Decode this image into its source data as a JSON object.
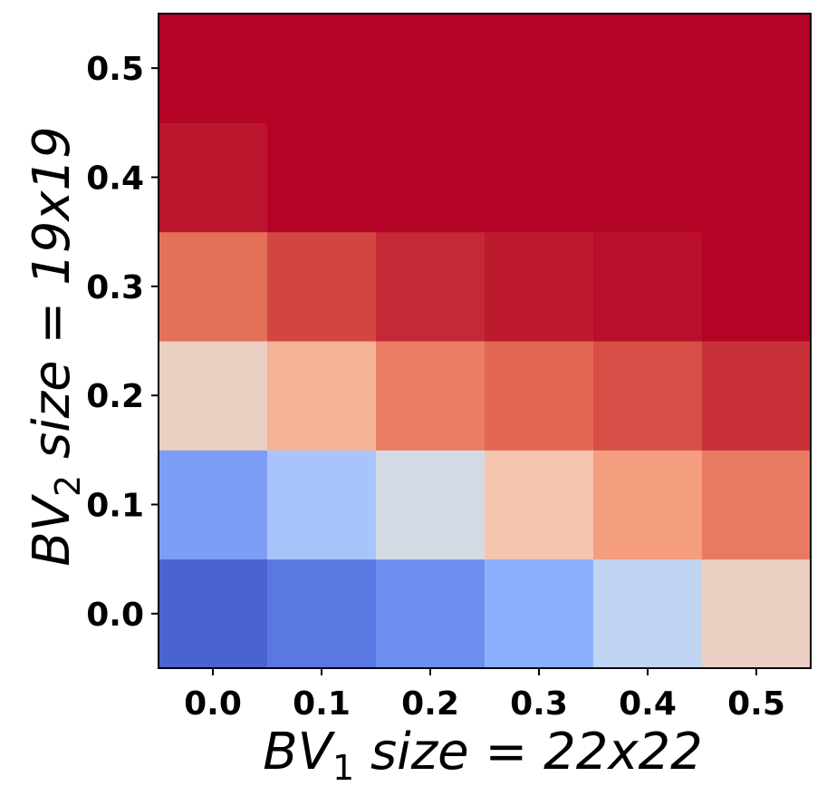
{
  "chart_data": {
    "type": "heatmap",
    "title": "",
    "xlabel": {
      "main": "BV",
      "sub": "1",
      "rest": " size = 22x22"
    },
    "ylabel": {
      "main": "BV",
      "sub": "2",
      "rest": " size = 19x19"
    },
    "x_ticks": [
      "0.0",
      "0.1",
      "0.2",
      "0.3",
      "0.4",
      "0.5"
    ],
    "y_ticks": [
      "0.0",
      "0.1",
      "0.2",
      "0.3",
      "0.4",
      "0.5"
    ],
    "x": [
      0.0,
      0.1,
      0.2,
      0.3,
      0.4,
      0.5
    ],
    "y": [
      0.0,
      0.1,
      0.2,
      0.3,
      0.4,
      0.5
    ],
    "colormap": "coolwarm",
    "vrange": [
      0,
      1
    ],
    "values": [
      [
        0.05,
        0.1,
        0.16,
        0.25,
        0.4,
        0.57
      ],
      [
        0.2,
        0.33,
        0.47,
        0.62,
        0.74,
        0.82
      ],
      [
        0.57,
        0.68,
        0.81,
        0.86,
        0.9,
        0.94
      ],
      [
        0.84,
        0.91,
        0.95,
        0.97,
        0.985,
        1.0
      ],
      [
        0.975,
        1.0,
        1.0,
        1.0,
        1.0,
        1.0
      ],
      [
        1.0,
        1.0,
        1.0,
        1.0,
        1.0,
        1.0
      ]
    ],
    "grid": false,
    "legend": "none"
  }
}
